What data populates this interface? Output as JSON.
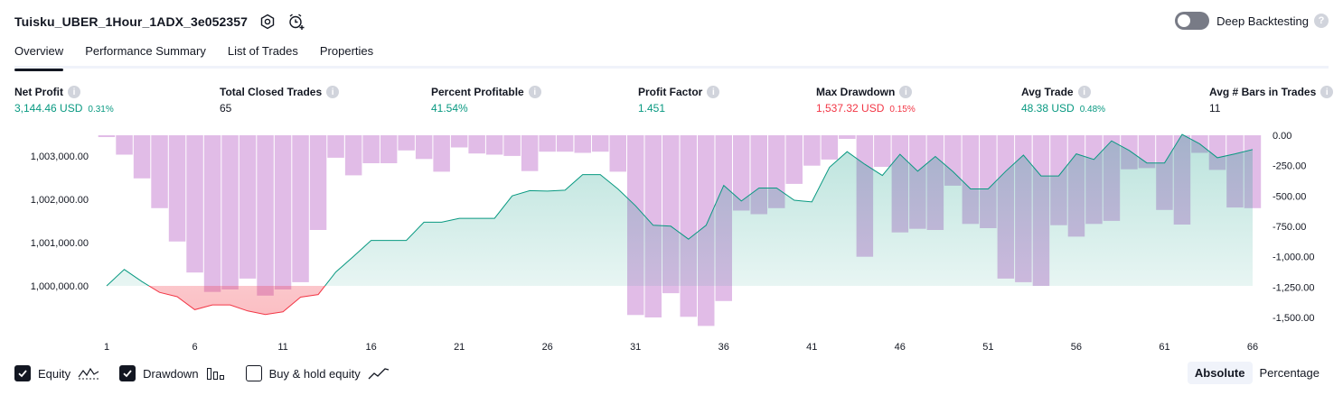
{
  "header": {
    "strategy_name": "Tuisku_UBER_1Hour_1ADX_3e052357",
    "settings_icon": "gear-icon",
    "alert_icon": "add-alert-icon"
  },
  "deep_backtesting": {
    "label": "Deep Backtesting",
    "enabled": false,
    "help": "?"
  },
  "tabs": [
    {
      "label": "Overview",
      "active": true
    },
    {
      "label": "Performance Summary",
      "active": false
    },
    {
      "label": "List of Trades",
      "active": false
    },
    {
      "label": "Properties",
      "active": false
    }
  ],
  "metrics": [
    {
      "label": "Net Profit",
      "value": "3,144.46 USD",
      "pct": "0.31%",
      "color": "#089981"
    },
    {
      "label": "Total Closed Trades",
      "value": "65",
      "pct": "",
      "color": "#131722"
    },
    {
      "label": "Percent Profitable",
      "value": "41.54%",
      "pct": "",
      "color": "#089981"
    },
    {
      "label": "Profit Factor",
      "value": "1.451",
      "pct": "",
      "color": "#089981"
    },
    {
      "label": "Max Drawdown",
      "value": "1,537.32 USD",
      "pct": "0.15%",
      "color": "#f23645"
    },
    {
      "label": "Avg Trade",
      "value": "48.38 USD",
      "pct": "0.48%",
      "color": "#089981"
    },
    {
      "label": "Avg # Bars in Trades",
      "value": "11",
      "pct": "",
      "color": "#131722"
    }
  ],
  "info_glyph": "i",
  "chart_data": {
    "type": "line",
    "x_ticks": [
      "1",
      "6",
      "11",
      "16",
      "21",
      "26",
      "31",
      "36",
      "41",
      "46",
      "51",
      "56",
      "61",
      "66"
    ],
    "left_axis_ticks": [
      "1,003,000.00",
      "1,002,000.00",
      "1,001,000.00",
      "1,000,000.00"
    ],
    "left_axis_values": [
      1003000,
      1002000,
      1001000,
      1000000
    ],
    "right_axis_ticks": [
      "0.00",
      "-250.00",
      "-500.00",
      "-750.00",
      "-1,000.00",
      "-1,250.00",
      "-1,500.00"
    ],
    "right_axis_values": [
      0,
      -250,
      -500,
      -750,
      -1000,
      -1250,
      -1500
    ],
    "baseline": 1000000,
    "series": [
      {
        "name": "Equity",
        "color_up": "#089981",
        "color_down": "#f23645",
        "x": [
          1,
          2,
          3,
          4,
          5,
          6,
          7,
          8,
          9,
          10,
          11,
          12,
          13,
          14,
          15,
          16,
          17,
          18,
          19,
          20,
          21,
          22,
          23,
          24,
          25,
          26,
          27,
          28,
          29,
          30,
          31,
          32,
          33,
          34,
          35,
          36,
          37,
          38,
          39,
          40,
          41,
          42,
          43,
          44,
          45,
          46,
          47,
          48,
          49,
          50,
          51,
          52,
          53,
          54,
          55,
          56,
          57,
          58,
          59,
          60,
          61,
          62,
          63,
          64,
          65,
          66
        ],
        "values": [
          1000000,
          1000380,
          1000100,
          999850,
          999750,
          999450,
          999560,
          999560,
          999420,
          999340,
          999400,
          999740,
          999800,
          1000320,
          1000680,
          1001050,
          1001050,
          1001050,
          1001470,
          1001470,
          1001560,
          1001560,
          1001560,
          1002080,
          1002200,
          1002190,
          1002210,
          1002570,
          1002570,
          1002240,
          1001850,
          1001400,
          1001380,
          1001080,
          1001400,
          1002320,
          1001960,
          1002260,
          1002260,
          1001980,
          1001940,
          1002740,
          1003100,
          1002810,
          1002550,
          1003040,
          1002650,
          1002990,
          1002640,
          1002240,
          1002240,
          1002650,
          1003020,
          1002540,
          1002540,
          1003050,
          1002920,
          1003350,
          1003130,
          1002840,
          1002840,
          1003500,
          1003280,
          1002960,
          1003050,
          1003150
        ]
      },
      {
        "name": "Drawdown",
        "color": "#ce93d8",
        "x": [
          1,
          2,
          3,
          4,
          5,
          6,
          7,
          8,
          9,
          10,
          11,
          12,
          13,
          14,
          15,
          16,
          17,
          18,
          19,
          20,
          21,
          22,
          23,
          24,
          25,
          26,
          27,
          28,
          29,
          30,
          31,
          32,
          33,
          34,
          35,
          36,
          37,
          38,
          39,
          40,
          41,
          42,
          43,
          44,
          45,
          46,
          47,
          48,
          49,
          50,
          51,
          52,
          53,
          54,
          55,
          56,
          57,
          58,
          59,
          60,
          61,
          62,
          63,
          64,
          65,
          66
        ],
        "values": [
          -15,
          -160,
          -355,
          -600,
          -875,
          -1130,
          -1290,
          -1270,
          -1180,
          -1320,
          -1270,
          -1210,
          -780,
          -185,
          -330,
          -230,
          -230,
          -125,
          -195,
          -300,
          -100,
          -150,
          -160,
          -170,
          -295,
          -135,
          -135,
          -145,
          -135,
          -300,
          -1480,
          -1500,
          -1300,
          -1495,
          -1570,
          -1365,
          -620,
          -650,
          -600,
          -400,
          -250,
          -200,
          -30,
          -1000,
          -260,
          -800,
          -770,
          -780,
          -415,
          -730,
          -765,
          -1180,
          -1210,
          -1240,
          -740,
          -835,
          -730,
          -705,
          -280,
          -270,
          -615,
          -735,
          -145,
          -285,
          -595,
          -600
        ]
      },
      {
        "name": "Buy & hold equity",
        "visible": false
      }
    ]
  },
  "legend": [
    {
      "label": "Equity",
      "checked": true,
      "icon": "equity-wave-icon"
    },
    {
      "label": "Drawdown",
      "checked": true,
      "icon": "drawdown-bars-icon"
    },
    {
      "label": "Buy & hold equity",
      "checked": false,
      "icon": "buy-hold-line-icon"
    }
  ],
  "scale_buttons": [
    {
      "label": "Absolute",
      "active": true
    },
    {
      "label": "Percentage",
      "active": false
    }
  ]
}
